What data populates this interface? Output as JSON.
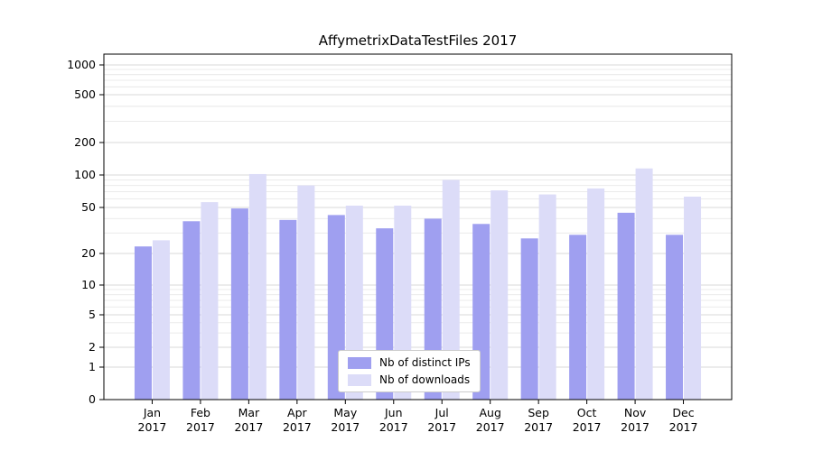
{
  "title": "AffymetrixDataTestFiles 2017",
  "colors": {
    "distinct_ips": "#9f9ff0",
    "downloads": "#dcdcf8",
    "grid_major": "#d8d8d8",
    "grid_minor": "#ebebeb",
    "axis": "#000000",
    "background": "#ffffff"
  },
  "x_axis": {
    "months": [
      "Jan",
      "Feb",
      "Mar",
      "Apr",
      "May",
      "Jun",
      "Jul",
      "Aug",
      "Sep",
      "Oct",
      "Nov",
      "Dec"
    ],
    "year": "2017"
  },
  "y_axis": {
    "ticks": [
      0,
      1,
      2,
      5,
      10,
      20,
      50,
      100,
      200,
      500,
      1000
    ],
    "scale": "symlog"
  },
  "legend": {
    "items": [
      "Nb of distinct IPs",
      "Nb of downloads"
    ]
  },
  "chart_data": {
    "type": "bar",
    "title": "AffymetrixDataTestFiles 2017",
    "categories": [
      "Jan 2017",
      "Feb 2017",
      "Mar 2017",
      "Apr 2017",
      "May 2017",
      "Jun 2017",
      "Jul 2017",
      "Aug 2017",
      "Sep 2017",
      "Oct 2017",
      "Nov 2017",
      "Dec 2017"
    ],
    "series": [
      {
        "name": "Nb of distinct IPs",
        "values": [
          23,
          38,
          49,
          39,
          43,
          33,
          40,
          36,
          27,
          29,
          45,
          29
        ]
      },
      {
        "name": "Nb of downloads",
        "values": [
          26,
          56,
          102,
          80,
          52,
          52,
          90,
          72,
          66,
          75,
          115,
          63
        ]
      }
    ],
    "yscale": "symlog",
    "ylim": [
      0,
      1000
    ],
    "yticks": [
      0,
      1,
      2,
      5,
      10,
      20,
      50,
      100,
      200,
      500,
      1000
    ],
    "grid": true,
    "legend_position": "lower center"
  }
}
